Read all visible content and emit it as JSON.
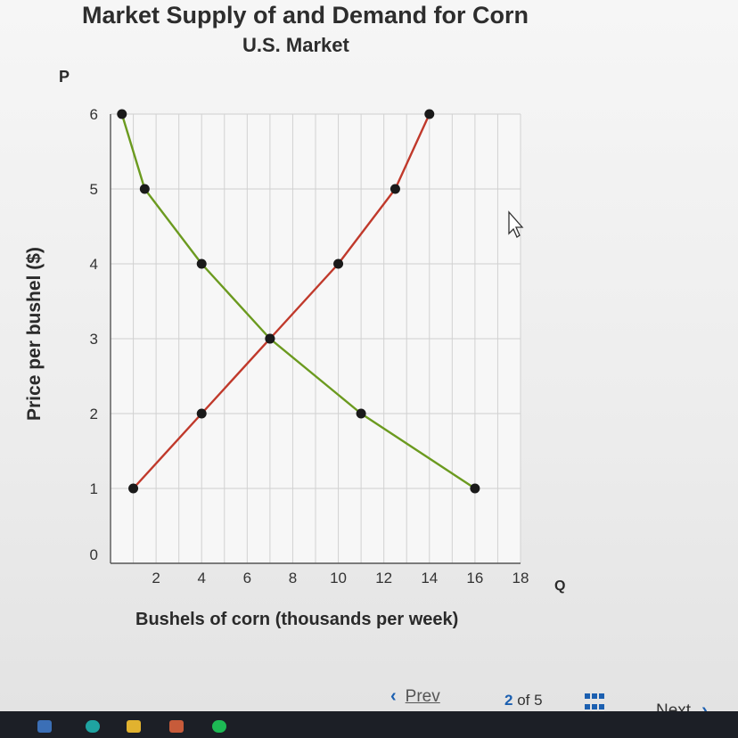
{
  "chart_data": {
    "type": "line",
    "title": "Market Supply of and Demand for Corn",
    "subtitle": "U.S. Market",
    "xlabel": "Bushels of corn (thousands per week)",
    "ylabel": "Price per bushel ($)",
    "x_axis_letter": "Q",
    "y_axis_letter": "P",
    "xlim": [
      0,
      18
    ],
    "ylim": [
      0,
      6
    ],
    "x_ticks": [
      "2",
      "4",
      "6",
      "8",
      "10",
      "12",
      "14",
      "16",
      "18"
    ],
    "y_ticks": [
      "0",
      "1",
      "2",
      "3",
      "4",
      "5",
      "6"
    ],
    "grid": true,
    "series": [
      {
        "color": "#6b9a1f",
        "points": [
          [
            0.5,
            6
          ],
          [
            1.5,
            5
          ],
          [
            4,
            4
          ],
          [
            7,
            3
          ],
          [
            11,
            2
          ],
          [
            16,
            1
          ]
        ]
      },
      {
        "color": "#c0392b",
        "points": [
          [
            1,
            1
          ],
          [
            4,
            2
          ],
          [
            7,
            3
          ],
          [
            10,
            4
          ],
          [
            12.5,
            5
          ],
          [
            14,
            6
          ]
        ]
      }
    ]
  },
  "nav": {
    "prev_label": "Prev",
    "page_current": "2",
    "page_of": "of 5",
    "next_label": "Next",
    "prev_icon": "chevron-left-icon",
    "next_icon": "chevron-right-icon",
    "grid_icon": "grid-icon"
  }
}
